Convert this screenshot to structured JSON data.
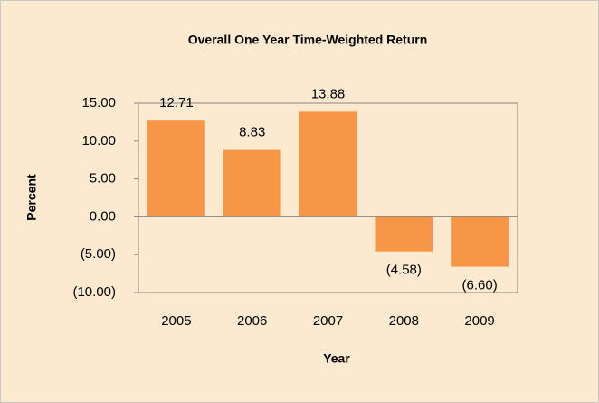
{
  "chart_data": {
    "type": "bar",
    "title": "Overall One Year Time-Weighted Return",
    "x_label": "Year",
    "y_label": "Percent",
    "categories": [
      "2005",
      "2006",
      "2007",
      "2008",
      "2009"
    ],
    "values": [
      12.71,
      8.83,
      13.88,
      -4.58,
      -6.6
    ],
    "value_labels": [
      "12.71",
      "8.83",
      "13.88",
      "(4.58)",
      "(6.60)"
    ],
    "color": "#f79646",
    "ylim": [
      -10,
      15
    ],
    "yticks": [
      {
        "value": -10,
        "label": "(10.00)"
      },
      {
        "value": -5,
        "label": "(5.00)"
      },
      {
        "value": 0,
        "label": "0.00"
      },
      {
        "value": 5,
        "label": "5.00"
      },
      {
        "value": 10,
        "label": "10.00"
      },
      {
        "value": 15,
        "label": "15.00"
      }
    ]
  }
}
